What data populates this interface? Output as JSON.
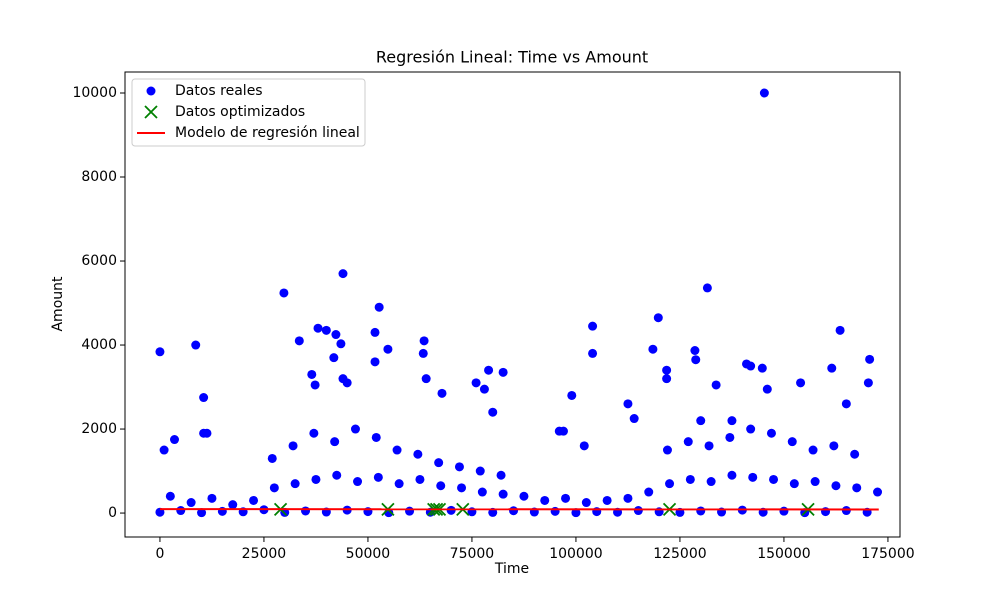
{
  "chart_data": {
    "type": "scatter",
    "title": "Regresión Lineal: Time vs Amount",
    "x_label": "Time",
    "y_label": "Amount",
    "xlim": [
      -8400,
      177900
    ],
    "ylim": [
      -570,
      10500
    ],
    "xticks": [
      0,
      25000,
      50000,
      75000,
      100000,
      125000,
      150000,
      175000
    ],
    "yticks": [
      0,
      2000,
      4000,
      6000,
      8000,
      10000
    ],
    "grid": false,
    "legend": "upper left",
    "series": [
      {
        "name": "Datos reales",
        "color": "#0000ff",
        "style": "circle",
        "x": [
          0,
          5000,
          10000,
          15000,
          20000,
          25000,
          30000,
          35000,
          40000,
          45000,
          50000,
          55000,
          60000,
          65000,
          70000,
          75000,
          80000,
          85000,
          90000,
          95000,
          100000,
          105000,
          110000,
          115000,
          120000,
          125000,
          130000,
          135000,
          140000,
          145000,
          150000,
          155000,
          160000,
          165000,
          170000,
          2500,
          7500,
          12500,
          17500,
          22500,
          27500,
          32500,
          37500,
          42500,
          47500,
          52500,
          57500,
          62500,
          67500,
          72500,
          77500,
          82500,
          87500,
          92500,
          97500,
          102500,
          107500,
          112500,
          117500,
          122500,
          127500,
          132500,
          137500,
          142500,
          147500,
          152500,
          157500,
          162500,
          167500,
          172500,
          27000,
          32000,
          37000,
          42000,
          47000,
          52000,
          57000,
          62000,
          67000,
          72000,
          77000,
          82000,
          122000,
          127000,
          132000,
          137000,
          142000,
          147000,
          152000,
          157000,
          162000,
          167000,
          0,
          8600,
          10500,
          10500,
          11300,
          1000,
          3500,
          29800,
          44000,
          52700,
          38000,
          40000,
          33500,
          42300,
          43500,
          51700,
          51700,
          54800,
          41800,
          63500,
          63300,
          36500,
          37300,
          45000,
          44000,
          64000,
          67800,
          76000,
          79000,
          82500,
          78000,
          80000,
          99000,
          104000,
          104000,
          102000,
          119800,
          121800,
          121800,
          118500,
          128600,
          128800,
          131600,
          133700,
          141000,
          142000,
          145300,
          144800,
          146000,
          163500,
          161500,
          165000,
          170600,
          170300,
          154000,
          96000,
          97000,
          112500,
          114000,
          137500,
          130000
        ],
        "values": [
          20,
          60,
          10,
          40,
          30,
          80,
          15,
          50,
          25,
          70,
          35,
          10,
          45,
          20,
          65,
          30,
          15,
          55,
          25,
          40,
          10,
          35,
          20,
          60,
          30,
          15,
          50,
          25,
          70,
          20,
          45,
          10,
          35,
          60,
          20,
          400,
          250,
          350,
          200,
          300,
          600,
          700,
          800,
          900,
          750,
          850,
          700,
          800,
          650,
          600,
          500,
          450,
          400,
          300,
          350,
          250,
          300,
          350,
          500,
          700,
          800,
          750,
          900,
          850,
          800,
          700,
          750,
          650,
          600,
          500,
          1300,
          1600,
          1900,
          1700,
          2000,
          1800,
          1500,
          1400,
          1200,
          1100,
          1000,
          900,
          1500,
          1700,
          1600,
          1800,
          2000,
          1900,
          1700,
          1500,
          1600,
          1400,
          3840,
          4000,
          2750,
          1900,
          1900,
          1500,
          1750,
          5240,
          5700,
          4900,
          4400,
          4350,
          4100,
          4250,
          4030,
          4300,
          3600,
          3900,
          3700,
          4100,
          3800,
          3300,
          3050,
          3100,
          3200,
          3200,
          2850,
          3100,
          3400,
          3350,
          2950,
          2400,
          2800,
          4450,
          3800,
          1600,
          4650,
          3400,
          3200,
          3900,
          3870,
          3650,
          5360,
          3050,
          3550,
          3500,
          10000,
          3450,
          2950,
          4350,
          3450,
          2600,
          3660,
          3100,
          3100,
          1950,
          1950,
          2600,
          2250,
          2200,
          2200
        ]
      },
      {
        "name": "Datos optimizados",
        "color": "#008000",
        "style": "cross",
        "x": [
          29000,
          54800,
          65800,
          66500,
          67200,
          72800,
          122500,
          155800
        ],
        "values": [
          88,
          88,
          88,
          88,
          88,
          88,
          88,
          88
        ]
      },
      {
        "name": "Modelo de regresión lineal",
        "color": "#ff0000",
        "style": "line",
        "x": [
          0,
          172792
        ],
        "values": [
          94,
          86
        ]
      }
    ]
  }
}
